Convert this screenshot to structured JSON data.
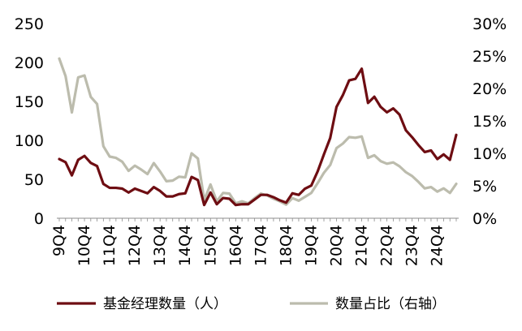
{
  "chart_data": {
    "type": "line",
    "x_tick_labels": [
      "9Q4",
      "10Q4",
      "11Q4",
      "12Q4",
      "13Q4",
      "14Q4",
      "15Q4",
      "16Q4",
      "17Q4",
      "18Q4",
      "19Q4",
      "20Q4",
      "21Q4",
      "22Q4",
      "23Q4",
      "24Q4"
    ],
    "left_axis": {
      "ticks": [
        "0",
        "50",
        "100",
        "150",
        "200",
        "250"
      ],
      "ylim": [
        0,
        250
      ]
    },
    "right_axis": {
      "ticks": [
        "0%",
        "5%",
        "10%",
        "15%",
        "20%",
        "25%",
        "30%"
      ],
      "ylim": [
        0,
        30
      ]
    },
    "grid": false,
    "legend_position": "bottom",
    "series": [
      {
        "name": "基金经理数量（人）",
        "axis": "left",
        "color": "#6e0d12",
        "values": [
          76,
          72,
          55,
          75,
          80,
          71,
          67,
          44,
          39,
          39,
          38,
          33,
          38,
          35,
          32,
          40,
          35,
          28,
          28,
          31,
          32,
          53,
          49,
          17,
          33,
          18,
          26,
          25,
          17,
          18,
          18,
          24,
          30,
          30,
          27,
          23,
          20,
          32,
          30,
          38,
          42,
          60,
          82,
          103,
          143,
          158,
          177,
          179,
          192,
          148,
          156,
          143,
          136,
          141,
          133,
          113,
          104,
          94,
          85,
          87,
          76,
          82,
          75,
          107
        ]
      },
      {
        "name": "数量占比（右轴）",
        "axis": "right",
        "color": "#bcbcad",
        "values": [
          24.6,
          21.9,
          16.3,
          21.7,
          22.0,
          18.7,
          17.6,
          11.1,
          9.5,
          9.3,
          8.7,
          7.3,
          8.1,
          7.5,
          6.8,
          8.5,
          7.2,
          5.7,
          5.8,
          6.4,
          6.3,
          10.0,
          9.2,
          2.8,
          5.2,
          2.6,
          3.9,
          3.8,
          2.3,
          2.6,
          2.3,
          3.1,
          3.8,
          3.5,
          3.0,
          2.6,
          2.1,
          3.1,
          2.7,
          3.3,
          3.9,
          5.4,
          7.0,
          8.2,
          10.8,
          11.5,
          12.5,
          12.4,
          12.6,
          9.3,
          9.7,
          8.8,
          8.4,
          8.6,
          8.0,
          7.1,
          6.5,
          5.6,
          4.6,
          4.8,
          4.1,
          4.6,
          3.9,
          5.3
        ]
      }
    ]
  }
}
